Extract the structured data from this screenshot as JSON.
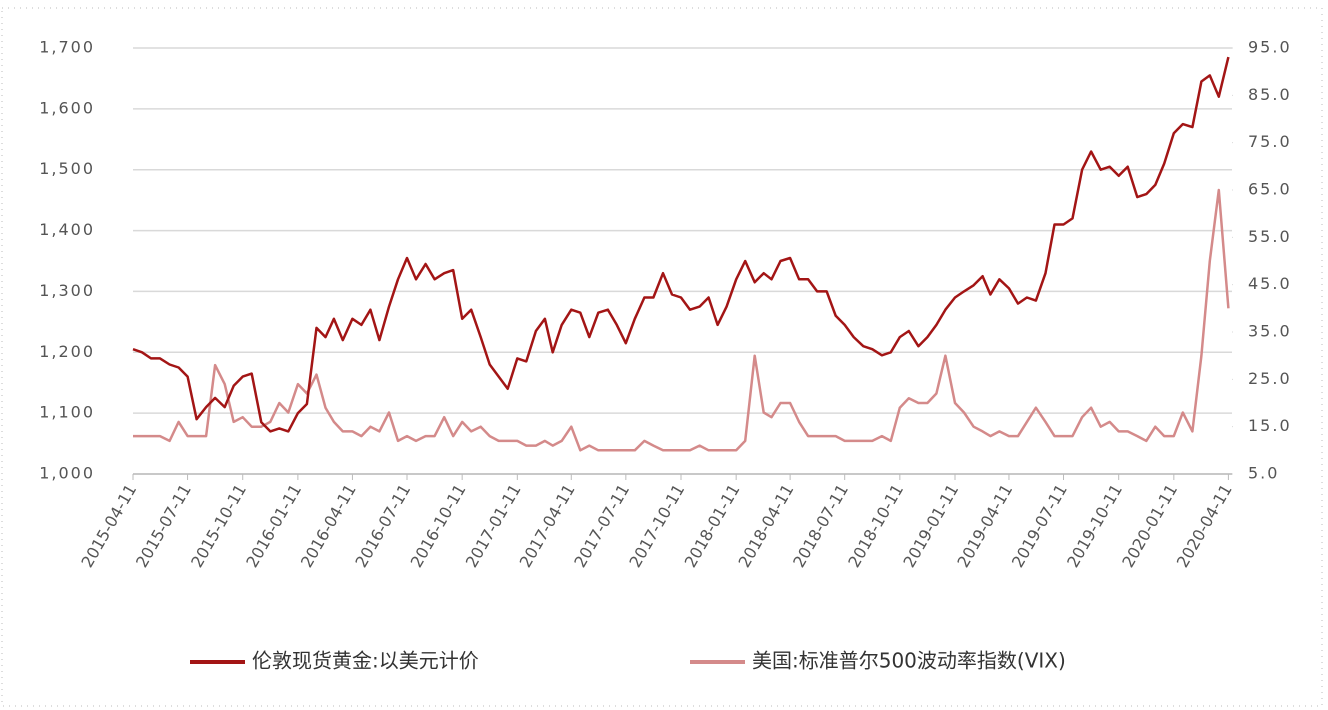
{
  "chart_data": {
    "type": "line",
    "x": [
      "2015-04-11",
      "2015-04-26",
      "2015-05-11",
      "2015-05-26",
      "2015-06-11",
      "2015-06-26",
      "2015-07-11",
      "2015-07-26",
      "2015-08-11",
      "2015-08-26",
      "2015-09-11",
      "2015-09-26",
      "2015-10-11",
      "2015-10-26",
      "2015-11-11",
      "2015-11-26",
      "2015-12-11",
      "2015-12-26",
      "2016-01-11",
      "2016-01-26",
      "2016-02-11",
      "2016-02-26",
      "2016-03-11",
      "2016-03-26",
      "2016-04-11",
      "2016-04-26",
      "2016-05-11",
      "2016-05-26",
      "2016-06-11",
      "2016-06-26",
      "2016-07-11",
      "2016-07-26",
      "2016-08-11",
      "2016-08-26",
      "2016-09-11",
      "2016-09-26",
      "2016-10-11",
      "2016-10-26",
      "2016-11-11",
      "2016-11-26",
      "2016-12-11",
      "2016-12-26",
      "2017-01-11",
      "2017-01-26",
      "2017-02-11",
      "2017-02-26",
      "2017-03-11",
      "2017-03-26",
      "2017-04-11",
      "2017-04-26",
      "2017-05-11",
      "2017-05-26",
      "2017-06-11",
      "2017-06-26",
      "2017-07-11",
      "2017-07-26",
      "2017-08-11",
      "2017-08-26",
      "2017-09-11",
      "2017-09-26",
      "2017-10-11",
      "2017-10-26",
      "2017-11-11",
      "2017-11-26",
      "2017-12-11",
      "2017-12-26",
      "2018-01-11",
      "2018-01-26",
      "2018-02-11",
      "2018-02-26",
      "2018-03-11",
      "2018-03-26",
      "2018-04-11",
      "2018-04-26",
      "2018-05-11",
      "2018-05-26",
      "2018-06-11",
      "2018-06-26",
      "2018-07-11",
      "2018-07-26",
      "2018-08-11",
      "2018-08-26",
      "2018-09-11",
      "2018-09-26",
      "2018-10-11",
      "2018-10-26",
      "2018-11-11",
      "2018-11-26",
      "2018-12-11",
      "2018-12-26",
      "2019-01-11",
      "2019-01-26",
      "2019-02-11",
      "2019-02-26",
      "2019-03-11",
      "2019-03-26",
      "2019-04-11",
      "2019-04-26",
      "2019-05-11",
      "2019-05-26",
      "2019-06-11",
      "2019-06-26",
      "2019-07-11",
      "2019-07-26",
      "2019-08-11",
      "2019-08-26",
      "2019-09-11",
      "2019-09-26",
      "2019-10-11",
      "2019-10-26",
      "2019-11-11",
      "2019-11-26",
      "2019-12-11",
      "2019-12-26",
      "2020-01-11",
      "2020-01-26",
      "2020-02-11",
      "2020-02-26",
      "2020-03-11",
      "2020-03-26",
      "2020-04-11"
    ],
    "series": [
      {
        "name": "伦敦现货黄金:以美元计价",
        "color": "#a31515",
        "values": [
          1205,
          1200,
          1190,
          1190,
          1180,
          1175,
          1160,
          1090,
          1110,
          1125,
          1110,
          1145,
          1160,
          1165,
          1085,
          1070,
          1075,
          1070,
          1100,
          1115,
          1240,
          1225,
          1255,
          1220,
          1255,
          1245,
          1270,
          1220,
          1275,
          1320,
          1355,
          1320,
          1345,
          1320,
          1330,
          1335,
          1255,
          1270,
          1225,
          1180,
          1160,
          1140,
          1190,
          1185,
          1235,
          1255,
          1200,
          1245,
          1270,
          1265,
          1225,
          1265,
          1270,
          1245,
          1215,
          1255,
          1290,
          1290,
          1330,
          1295,
          1290,
          1270,
          1275,
          1290,
          1245,
          1275,
          1320,
          1350,
          1315,
          1330,
          1320,
          1350,
          1355,
          1320,
          1320,
          1300,
          1300,
          1260,
          1245,
          1225,
          1210,
          1205,
          1195,
          1200,
          1225,
          1235,
          1210,
          1225,
          1245,
          1270,
          1290,
          1300,
          1310,
          1325,
          1295,
          1320,
          1305,
          1280,
          1290,
          1285,
          1330,
          1410,
          1410,
          1420,
          1500,
          1530,
          1500,
          1505,
          1490,
          1505,
          1455,
          1460,
          1475,
          1510,
          1560,
          1575,
          1570,
          1645,
          1655,
          1620,
          1685
        ]
      },
      {
        "name": "美国:标准普尔500波动率指数(VIX)",
        "color": "#d48a8a",
        "axis": "y2",
        "values": [
          13,
          13,
          13,
          13,
          12,
          16,
          13,
          13,
          13,
          28,
          24,
          16,
          17,
          15,
          15,
          16,
          20,
          18,
          24,
          22,
          26,
          19,
          16,
          14,
          14,
          13,
          15,
          14,
          18,
          12,
          13,
          12,
          13,
          13,
          17,
          13,
          16,
          14,
          15,
          13,
          12,
          12,
          12,
          11,
          11,
          12,
          11,
          12,
          15,
          10,
          11,
          10,
          10,
          10,
          10,
          10,
          12,
          11,
          10,
          10,
          10,
          10,
          11,
          10,
          10,
          10,
          10,
          12,
          30,
          18,
          17,
          20,
          20,
          16,
          13,
          13,
          13,
          13,
          12,
          12,
          12,
          12,
          13,
          12,
          19,
          21,
          20,
          20,
          22,
          30,
          20,
          18,
          15,
          14,
          13,
          14,
          13,
          13,
          16,
          19,
          16,
          13,
          13,
          13,
          17,
          19,
          15,
          16,
          14,
          14,
          13,
          12,
          15,
          13,
          13,
          18,
          14,
          30,
          50,
          65,
          40
        ]
      }
    ],
    "xlim": [
      "2015-04-11",
      "2020-04-17"
    ],
    "xticks": [
      "2015-04-11",
      "2015-07-11",
      "2015-10-11",
      "2016-01-11",
      "2016-04-11",
      "2016-07-11",
      "2016-10-11",
      "2017-01-11",
      "2017-04-11",
      "2017-07-11",
      "2017-10-11",
      "2018-01-11",
      "2018-04-11",
      "2018-07-11",
      "2018-10-11",
      "2019-01-11",
      "2019-04-11",
      "2019-07-11",
      "2019-10-11",
      "2020-01-11",
      "2020-04-11"
    ],
    "ylim": [
      1000,
      1700
    ],
    "yticks": [
      {
        "value": 1000,
        "label": "1,000"
      },
      {
        "value": 1100,
        "label": "1,100"
      },
      {
        "value": 1200,
        "label": "1,200"
      },
      {
        "value": 1300,
        "label": "1,300"
      },
      {
        "value": 1400,
        "label": "1,400"
      },
      {
        "value": 1500,
        "label": "1,500"
      },
      {
        "value": 1600,
        "label": "1,600"
      },
      {
        "value": 1700,
        "label": "1,700"
      }
    ],
    "y2lim": [
      5,
      95
    ],
    "y2ticks": [
      {
        "value": 5,
        "label": "5.0"
      },
      {
        "value": 15,
        "label": "15.0"
      },
      {
        "value": 25,
        "label": "25.0"
      },
      {
        "value": 35,
        "label": "35.0"
      },
      {
        "value": 45,
        "label": "45.0"
      },
      {
        "value": 55,
        "label": "55.0"
      },
      {
        "value": 65,
        "label": "65.0"
      },
      {
        "value": 75,
        "label": "75.0"
      },
      {
        "value": 85,
        "label": "85.0"
      },
      {
        "value": 95,
        "label": "95.0"
      }
    ],
    "grid": true,
    "legend": "bottom"
  }
}
